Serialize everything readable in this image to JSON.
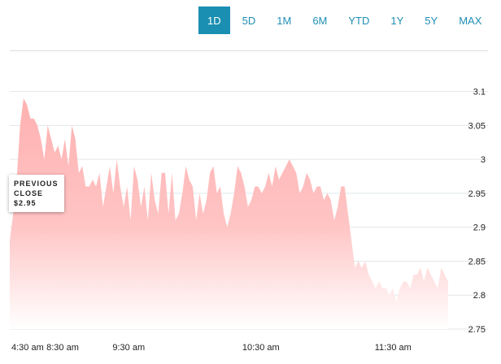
{
  "range_selector": {
    "options": [
      "1D",
      "5D",
      "1M",
      "6M",
      "YTD",
      "1Y",
      "5Y",
      "MAX"
    ],
    "selected": "1D"
  },
  "previous_close": {
    "label_line1": "PREVIOUS",
    "label_line2": "CLOSE",
    "value": "$2.95"
  },
  "colors": {
    "accent": "#1a8fb2",
    "area_fill": "#ffb1b1",
    "area_fade": "#ffffff"
  },
  "chart_data": {
    "type": "area",
    "y_ticks": [
      3.1,
      3.05,
      3,
      2.95,
      2.9,
      2.85,
      2.8,
      2.75
    ],
    "y_tick_labels": [
      "3.1",
      "3.05",
      "3",
      "2.95",
      "2.9",
      "2.85",
      "2.8",
      "2.75"
    ],
    "ylim": [
      2.75,
      3.115
    ],
    "x_tick_labels": [
      "4:30 am",
      "8:30 am",
      "9:30 am",
      "10:30 am",
      "11:30 am"
    ],
    "x_tick_positions": [
      0,
      48,
      108,
      228,
      348
    ],
    "x_range": [
      0,
      398
    ],
    "grid": true,
    "values": [
      2.88,
      2.92,
      2.97,
      3.05,
      3.09,
      3.08,
      3.06,
      3.06,
      3.05,
      3.03,
      3.0,
      3.05,
      3.03,
      3.01,
      3.02,
      3.0,
      3.03,
      2.99,
      3.05,
      3.03,
      2.98,
      2.99,
      2.96,
      2.96,
      2.97,
      2.96,
      2.98,
      2.93,
      2.96,
      2.99,
      2.95,
      3.0,
      2.96,
      2.93,
      2.96,
      2.91,
      2.99,
      2.97,
      2.93,
      2.96,
      2.91,
      2.98,
      2.94,
      2.92,
      2.98,
      2.98,
      2.92,
      2.98,
      2.91,
      2.92,
      2.95,
      2.99,
      2.97,
      2.96,
      2.91,
      2.95,
      2.92,
      2.94,
      2.98,
      2.99,
      2.95,
      2.96,
      2.92,
      2.9,
      2.92,
      2.95,
      2.99,
      2.98,
      2.96,
      2.93,
      2.94,
      2.96,
      2.96,
      2.95,
      2.96,
      2.98,
      2.96,
      2.99,
      2.97,
      2.98,
      2.99,
      3.0,
      2.99,
      2.98,
      2.95,
      2.96,
      2.98,
      2.97,
      2.95,
      2.96,
      2.96,
      2.94,
      2.95,
      2.94,
      2.91,
      2.93,
      2.96,
      2.96,
      2.92,
      2.88,
      2.84,
      2.85,
      2.84,
      2.85,
      2.83,
      2.82,
      2.81,
      2.82,
      2.81,
      2.81,
      2.8,
      2.81,
      2.79,
      2.81,
      2.82,
      2.82,
      2.81,
      2.83,
      2.83,
      2.84,
      2.82,
      2.84,
      2.83,
      2.82,
      2.81,
      2.84,
      2.83,
      2.82
    ]
  }
}
